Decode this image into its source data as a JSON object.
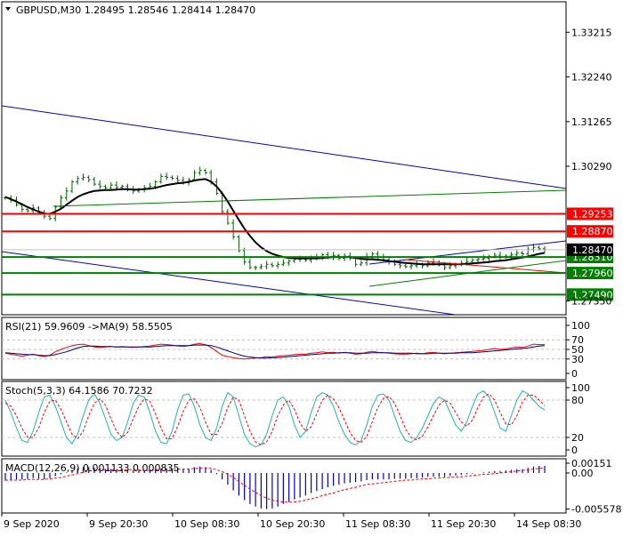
{
  "chart_data": [
    {
      "panel": "price",
      "type": "candlestick",
      "title": "GBPUSD,M30  1.28495 1.28546 1.28414 1.28470",
      "symbol": "GBPUSD",
      "timeframe": "M30",
      "ohlc": {
        "open": 1.28495,
        "high": 1.28546,
        "low": 1.28414,
        "close": 1.2847
      },
      "current_price": 1.2847,
      "ylim": [
        1.2705,
        1.3388
      ],
      "y_tick_labels": [
        {
          "text": "1.33215",
          "value": 1.33215
        },
        {
          "text": "1.32240",
          "value": 1.3224
        },
        {
          "text": "1.31265",
          "value": 1.31265
        },
        {
          "text": "1.30290",
          "value": 1.3029
        },
        {
          "text": "1.27350",
          "value": 1.2735
        }
      ],
      "x_tick_labels": [
        "9 Sep 2020",
        "9 Sep 20:30",
        "10 Sep 08:30",
        "10 Sep 20:30",
        "11 Sep 08:30",
        "11 Sep 20:30",
        "14 Sep 08:30"
      ],
      "horizontal_levels": [
        {
          "text": "1.29253",
          "value": 1.29253,
          "color": "#ff0000"
        },
        {
          "text": "1.28870",
          "value": 1.2887,
          "color": "#ff0000"
        },
        {
          "text": "1.28310",
          "value": 1.2831,
          "color": "#008000"
        },
        {
          "text": "1.27960",
          "value": 1.2796,
          "color": "#008000"
        },
        {
          "text": "1.27490",
          "value": 1.2749,
          "color": "#008000"
        },
        {
          "text": "1.28470",
          "value": 1.2847,
          "color": "#000000"
        }
      ],
      "close_series": [
        1.296,
        1.2955,
        1.2945,
        1.2935,
        1.2932,
        1.2938,
        1.2928,
        1.292,
        1.2915,
        1.294,
        1.296,
        1.2975,
        1.2995,
        1.3002,
        1.3005,
        1.3,
        1.299,
        1.2985,
        1.2982,
        1.2988,
        1.2983,
        1.2985,
        1.2978,
        1.2975,
        1.2978,
        1.2982,
        1.2985,
        1.2995,
        1.3007,
        1.3005,
        1.3003,
        1.2998,
        1.2993,
        1.3,
        1.3015,
        1.302,
        1.3015,
        1.2995,
        1.297,
        1.293,
        1.2905,
        1.2875,
        1.2845,
        1.282,
        1.2808,
        1.2808,
        1.281,
        1.2815,
        1.2812,
        1.2815,
        1.2818,
        1.2822,
        1.2826,
        1.2826,
        1.2824,
        1.2828,
        1.283,
        1.2836,
        1.283,
        1.2834,
        1.2828,
        1.2833,
        1.2828,
        1.2815,
        1.2818,
        1.2832,
        1.2838,
        1.283,
        1.2825,
        1.282,
        1.2815,
        1.2812,
        1.281,
        1.2812,
        1.2815,
        1.2812,
        1.2818,
        1.282,
        1.2814,
        1.2808,
        1.2812,
        1.2815,
        1.2818,
        1.2821,
        1.2824,
        1.2826,
        1.2828,
        1.2832,
        1.2835,
        1.2831,
        1.2833,
        1.2836,
        1.284,
        1.2838,
        1.2848,
        1.2852,
        1.2849,
        1.2847
      ],
      "ma_series": [
        1.2962,
        1.2957,
        1.2952,
        1.2946,
        1.294,
        1.2935,
        1.293,
        1.2926,
        1.2925,
        1.293,
        1.2936,
        1.2945,
        1.2954,
        1.2962,
        1.2968,
        1.2972,
        1.2975,
        1.2976,
        1.2977,
        1.2977,
        1.2978,
        1.2979,
        1.2979,
        1.2978,
        1.2978,
        1.2979,
        1.298,
        1.2982,
        1.2985,
        1.2988,
        1.299,
        1.2992,
        1.2993,
        1.2995,
        1.2998,
        1.3,
        1.3001,
        1.2995,
        1.2985,
        1.297,
        1.2952,
        1.2932,
        1.2912,
        1.2893,
        1.2877,
        1.2863,
        1.2852,
        1.2844,
        1.2838,
        1.2834,
        1.2831,
        1.2829,
        1.2828,
        1.2828,
        1.2828,
        1.2828,
        1.2828,
        1.2829,
        1.283,
        1.2831,
        1.2831,
        1.2831,
        1.2831,
        1.2829,
        1.2827,
        1.2826,
        1.2826,
        1.2825,
        1.2824,
        1.2822,
        1.2821,
        1.2819,
        1.2818,
        1.2817,
        1.2816,
        1.2815,
        1.2815,
        1.2815,
        1.2815,
        1.2815,
        1.2815,
        1.2815,
        1.2815,
        1.2816,
        1.2817,
        1.2818,
        1.2819,
        1.282,
        1.2822,
        1.2823,
        1.2824,
        1.2826,
        1.2828,
        1.283,
        1.2832,
        1.2835,
        1.2838,
        1.284
      ]
    },
    {
      "panel": "rsi",
      "type": "line",
      "title": "RSI(21) 59.9609  ->MA(9) 58.5505",
      "current_value": 59.9609,
      "ma_value": 58.5505,
      "ylim": [
        0,
        100
      ],
      "y_tick_labels": [
        {
          "text": "100",
          "value": 100
        },
        {
          "text": "70",
          "value": 70
        },
        {
          "text": "50",
          "value": 50
        },
        {
          "text": "30",
          "value": 30
        },
        {
          "text": "0",
          "value": 0
        }
      ],
      "series": [
        {
          "values": [
            42,
            40,
            38,
            36,
            38,
            40,
            37,
            35,
            38,
            45,
            50,
            54,
            58,
            60,
            61,
            58,
            55,
            54,
            55,
            56,
            55,
            56,
            55,
            54,
            55,
            56,
            57,
            59,
            61,
            60,
            59,
            57,
            56,
            58,
            61,
            62,
            60,
            54,
            46,
            38,
            35,
            33,
            31,
            30,
            31,
            32,
            33,
            35,
            34,
            36,
            37,
            38,
            39,
            40,
            40,
            42,
            43,
            45,
            43,
            44,
            42,
            44,
            42,
            40,
            41,
            44,
            46,
            44,
            43,
            42,
            41,
            40,
            40,
            41,
            42,
            41,
            43,
            44,
            42,
            41,
            42,
            43,
            44,
            45,
            46,
            47,
            48,
            50,
            52,
            50,
            51,
            53,
            55,
            54,
            57,
            61,
            60,
            60
          ],
          "color": "#ff0000"
        },
        {
          "values": [
            43,
            42,
            41,
            40,
            39,
            39,
            38,
            37,
            37,
            39,
            42,
            45,
            49,
            53,
            56,
            57,
            57,
            56,
            56,
            56,
            55,
            55,
            55,
            55,
            55,
            55,
            55,
            56,
            57,
            58,
            58,
            58,
            58,
            58,
            59,
            59,
            59,
            58,
            55,
            51,
            47,
            43,
            39,
            36,
            34,
            33,
            32,
            32,
            33,
            33,
            34,
            35,
            36,
            37,
            38,
            39,
            40,
            41,
            42,
            42,
            43,
            43,
            43,
            42,
            42,
            42,
            43,
            43,
            43,
            43,
            42,
            42,
            42,
            42,
            41,
            41,
            41,
            42,
            42,
            42,
            42,
            42,
            43,
            43,
            43,
            44,
            45,
            46,
            47,
            48,
            49,
            50,
            51,
            52,
            53,
            55,
            57,
            58
          ],
          "color": "#000080"
        }
      ]
    },
    {
      "panel": "stochastic",
      "type": "line",
      "title": "Stoch(5,3,3) 64.1586 70.7232",
      "main_value": 64.1586,
      "signal_value": 70.7232,
      "ylim": [
        0,
        100
      ],
      "y_tick_labels": [
        {
          "text": "100",
          "value": 100
        },
        {
          "text": "80",
          "value": 80
        },
        {
          "text": "20",
          "value": 20
        },
        {
          "text": "0",
          "value": 0
        }
      ],
      "series": [
        {
          "values": [
            80,
            60,
            35,
            15,
            12,
            30,
            60,
            85,
            88,
            70,
            45,
            20,
            10,
            25,
            55,
            80,
            90,
            75,
            50,
            25,
            15,
            20,
            45,
            75,
            88,
            85,
            60,
            30,
            12,
            10,
            30,
            65,
            88,
            90,
            70,
            40,
            20,
            15,
            35,
            70,
            92,
            85,
            55,
            25,
            10,
            5,
            8,
            25,
            55,
            80,
            85,
            70,
            40,
            20,
            30,
            60,
            85,
            92,
            88,
            70,
            45,
            25,
            12,
            8,
            15,
            40,
            70,
            88,
            90,
            80,
            55,
            30,
            15,
            12,
            20,
            35,
            55,
            75,
            85,
            80,
            60,
            40,
            30,
            45,
            70,
            90,
            95,
            85,
            60,
            35,
            30,
            55,
            80,
            95,
            90,
            80,
            70,
            64
          ],
          "color": "#20b2aa"
        },
        {
          "values": [
            75,
            70,
            55,
            35,
            20,
            20,
            35,
            60,
            78,
            80,
            65,
            45,
            25,
            18,
            30,
            55,
            75,
            82,
            72,
            50,
            30,
            20,
            28,
            50,
            70,
            82,
            78,
            58,
            35,
            18,
            18,
            38,
            62,
            80,
            82,
            68,
            45,
            25,
            25,
            42,
            68,
            85,
            80,
            55,
            30,
            13,
            8,
            13,
            30,
            55,
            72,
            80,
            65,
            43,
            30,
            37,
            58,
            80,
            88,
            82,
            68,
            48,
            28,
            15,
            12,
            22,
            45,
            68,
            83,
            86,
            75,
            55,
            33,
            20,
            16,
            22,
            37,
            55,
            72,
            80,
            75,
            60,
            45,
            38,
            48,
            68,
            85,
            90,
            80,
            60,
            42,
            40,
            55,
            77,
            88,
            88,
            80,
            71
          ],
          "color": "#ff0000"
        }
      ]
    },
    {
      "panel": "macd",
      "type": "bar",
      "title": "MACD(12,26,9) 0.001133 0.000835",
      "macd_value": 0.001133,
      "signal_value": 0.000835,
      "ylim": [
        -0.0062,
        0.0022
      ],
      "y_tick_labels": [
        {
          "text": "0.00151",
          "value": 0.00151
        },
        {
          "text": "0.00",
          "value": 0.0
        },
        {
          "text": "-0.005578",
          "value": -0.005578
        }
      ],
      "series": [
        {
          "name": "histogram",
          "values": [
            -0.0012,
            -0.0011,
            -0.001,
            -0.001,
            -0.0009,
            -0.0008,
            -0.0009,
            -0.001,
            -0.0008,
            -0.0005,
            -0.0002,
            0.0001,
            0.0004,
            0.0007,
            0.0009,
            0.0009,
            0.0008,
            0.0007,
            0.0006,
            0.0006,
            0.0005,
            0.0005,
            0.0004,
            0.0004,
            0.0004,
            0.0004,
            0.0005,
            0.0006,
            0.0007,
            0.0007,
            0.0007,
            0.0007,
            0.0006,
            0.0007,
            0.0009,
            0.001,
            0.0009,
            0.0005,
            -0.0002,
            -0.001,
            -0.0018,
            -0.0027,
            -0.0035,
            -0.0042,
            -0.0048,
            -0.0052,
            -0.0055,
            -0.0056,
            -0.0055,
            -0.0052,
            -0.0048,
            -0.0045,
            -0.0041,
            -0.0038,
            -0.0035,
            -0.0031,
            -0.0028,
            -0.0025,
            -0.0022,
            -0.002,
            -0.0018,
            -0.0016,
            -0.0015,
            -0.0014,
            -0.0013,
            -0.0011,
            -0.001,
            -0.001,
            -0.001,
            -0.001,
            -0.0009,
            -0.0009,
            -0.0009,
            -0.0008,
            -0.0008,
            -0.0007,
            -0.0006,
            -0.0006,
            -0.0006,
            -0.0006,
            -0.0005,
            -0.0004,
            -0.0003,
            -0.0002,
            -0.0001,
            0.0,
            0.0001,
            0.0002,
            0.0003,
            0.0003,
            0.0004,
            0.0005,
            0.0006,
            0.0006,
            0.0008,
            0.001,
            0.0011,
            0.0011
          ],
          "color": "#0000cd"
        },
        {
          "name": "signal",
          "values": [
            -0.0011,
            -0.0011,
            -0.0011,
            -0.0011,
            -0.001,
            -0.001,
            -0.001,
            -0.001,
            -0.0009,
            -0.0008,
            -0.0007,
            -0.0005,
            -0.0003,
            -0.0001,
            0.0001,
            0.0003,
            0.0004,
            0.0005,
            0.0005,
            0.0005,
            0.0005,
            0.0005,
            0.0005,
            0.0005,
            0.0005,
            0.0004,
            0.0004,
            0.0005,
            0.0005,
            0.0006,
            0.0006,
            0.0006,
            0.0006,
            0.0006,
            0.0007,
            0.0007,
            0.0008,
            0.0007,
            0.0005,
            0.0002,
            -0.0002,
            -0.0007,
            -0.0013,
            -0.0019,
            -0.0025,
            -0.003,
            -0.0035,
            -0.0039,
            -0.0042,
            -0.0044,
            -0.0045,
            -0.0045,
            -0.0045,
            -0.0044,
            -0.0042,
            -0.004,
            -0.0038,
            -0.0035,
            -0.0033,
            -0.0031,
            -0.0028,
            -0.0026,
            -0.0024,
            -0.0022,
            -0.002,
            -0.0018,
            -0.0017,
            -0.0016,
            -0.0015,
            -0.0014,
            -0.0013,
            -0.0012,
            -0.0011,
            -0.0011,
            -0.001,
            -0.0009,
            -0.0009,
            -0.0008,
            -0.0008,
            -0.0007,
            -0.0007,
            -0.0006,
            -0.0006,
            -0.0005,
            -0.0004,
            -0.0003,
            -0.0002,
            -0.0002,
            -0.0001,
            0.0,
            0.0001,
            0.0002,
            0.0003,
            0.0004,
            0.0005,
            0.0006,
            0.0007,
            0.0008
          ],
          "color": "#ff0000"
        }
      ]
    }
  ]
}
